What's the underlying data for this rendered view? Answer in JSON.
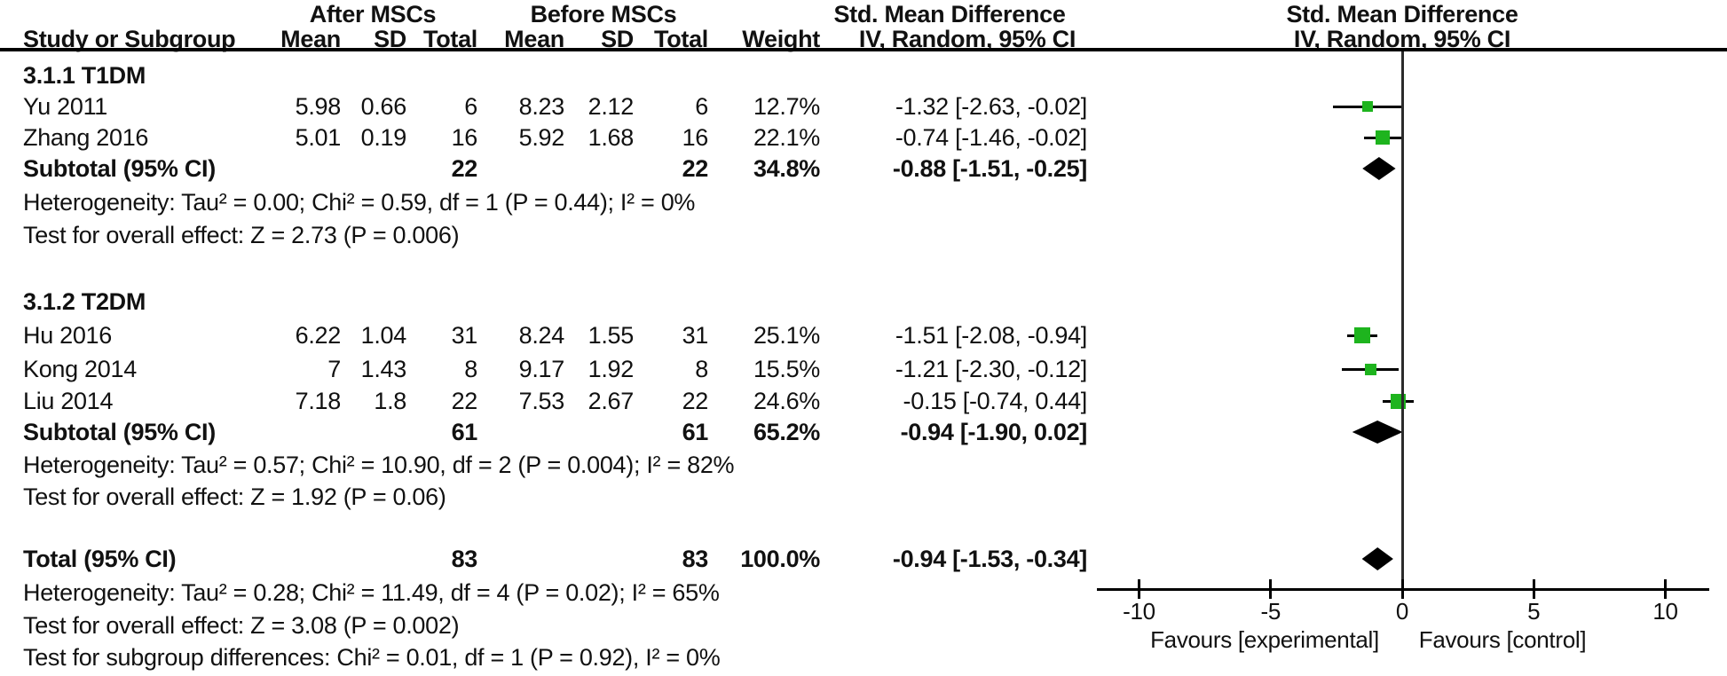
{
  "header": {
    "group_after": "After MSCs",
    "group_before": "Before MSCs",
    "smd_col_title": "Std. Mean Difference",
    "smd_plot_title": "Std. Mean Difference",
    "col_study": "Study or Subgroup",
    "col_mean": "Mean",
    "col_sd": "SD",
    "col_total": "Total",
    "col_mean2": "Mean",
    "col_sd2": "SD",
    "col_total2": "Total",
    "col_weight": "Weight",
    "col_ci": "IV, Random, 95% CI",
    "col_ci_plot": "IV, Random, 95% CI"
  },
  "chart_data": {
    "type": "forest",
    "effect_measure": "Std. Mean Difference",
    "model": "IV, Random, 95% CI",
    "groups": [
      {
        "label": "3.1.1 T1DM",
        "studies": [
          {
            "study": "Yu 2011",
            "mean_after": "5.98",
            "sd_after": "0.66",
            "total_after": "6",
            "mean_before": "8.23",
            "sd_before": "2.12",
            "total_before": "6",
            "weight": "12.7%",
            "weight_value": 12.7,
            "smd": -1.32,
            "ci_low": -2.63,
            "ci_high": -0.02,
            "ci_text": "-1.32 [-2.63, -0.02]"
          },
          {
            "study": "Zhang 2016",
            "mean_after": "5.01",
            "sd_after": "0.19",
            "total_after": "16",
            "mean_before": "5.92",
            "sd_before": "1.68",
            "total_before": "16",
            "weight": "22.1%",
            "weight_value": 22.1,
            "smd": -0.74,
            "ci_low": -1.46,
            "ci_high": -0.02,
            "ci_text": "-0.74 [-1.46, -0.02]"
          }
        ],
        "subtotal": {
          "label": "Subtotal (95% CI)",
          "total_after": "22",
          "total_before": "22",
          "weight": "34.8%",
          "smd": -0.88,
          "ci_low": -1.51,
          "ci_high": -0.25,
          "ci_text": "-0.88 [-1.51, -0.25]"
        },
        "heterogeneity": "Heterogeneity: Tau² = 0.00; Chi² = 0.59, df = 1 (P = 0.44); I² = 0%",
        "overall_effect": "Test for overall effect: Z = 2.73 (P = 0.006)"
      },
      {
        "label": "3.1.2 T2DM",
        "studies": [
          {
            "study": "Hu 2016",
            "mean_after": "6.22",
            "sd_after": "1.04",
            "total_after": "31",
            "mean_before": "8.24",
            "sd_before": "1.55",
            "total_before": "31",
            "weight": "25.1%",
            "weight_value": 25.1,
            "smd": -1.51,
            "ci_low": -2.08,
            "ci_high": -0.94,
            "ci_text": "-1.51 [-2.08, -0.94]"
          },
          {
            "study": "Kong 2014",
            "mean_after": "7",
            "sd_after": "1.43",
            "total_after": "8",
            "mean_before": "9.17",
            "sd_before": "1.92",
            "total_before": "8",
            "weight": "15.5%",
            "weight_value": 15.5,
            "smd": -1.21,
            "ci_low": -2.3,
            "ci_high": -0.12,
            "ci_text": "-1.21 [-2.30, -0.12]"
          },
          {
            "study": "Liu 2014",
            "mean_after": "7.18",
            "sd_after": "1.8",
            "total_after": "22",
            "mean_before": "7.53",
            "sd_before": "2.67",
            "total_before": "22",
            "weight": "24.6%",
            "weight_value": 24.6,
            "smd": -0.15,
            "ci_low": -0.74,
            "ci_high": 0.44,
            "ci_text": "-0.15 [-0.74, 0.44]"
          }
        ],
        "subtotal": {
          "label": "Subtotal (95% CI)",
          "total_after": "61",
          "total_before": "61",
          "weight": "65.2%",
          "smd": -0.94,
          "ci_low": -1.9,
          "ci_high": 0.02,
          "ci_text": "-0.94 [-1.90, 0.02]"
        },
        "heterogeneity": "Heterogeneity: Tau² = 0.57; Chi² = 10.90, df = 2 (P = 0.004); I² = 82%",
        "overall_effect": "Test for overall effect: Z = 1.92 (P = 0.06)"
      }
    ],
    "total": {
      "label": "Total (95% CI)",
      "total_after": "83",
      "total_before": "83",
      "weight": "100.0%",
      "smd": -0.94,
      "ci_low": -1.53,
      "ci_high": -0.34,
      "ci_text": "-0.94 [-1.53, -0.34]"
    },
    "total_heterogeneity": "Heterogeneity: Tau² = 0.28; Chi² = 11.49, df = 4 (P = 0.02); I² = 65%",
    "total_overall_effect": "Test for overall effect: Z = 3.08 (P = 0.002)",
    "subgroup_differences": "Test for subgroup differences: Chi² = 0.01, df = 1 (P = 0.92), I² = 0%",
    "axis": {
      "ticks": [
        -10,
        -5,
        0,
        5,
        10
      ],
      "min": -10,
      "max": 10,
      "favours_left": "Favours [experimental]",
      "favours_right": "Favours [control]"
    },
    "colors": {
      "square": "#1eb41e",
      "diamond": "#000000",
      "line": "#000000"
    }
  }
}
